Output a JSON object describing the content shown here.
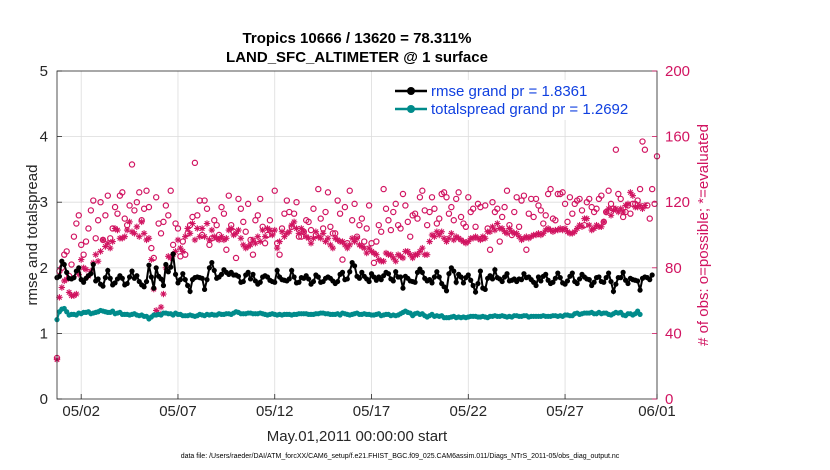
{
  "chart_data": {
    "type": "line",
    "title_line1": "Tropics 10666 / 13620 = 78.311%",
    "title_line2": "LAND_SFC_ALTIMETER @ 1 surface",
    "xlabel": "May.01,2011 00:00:00 start",
    "ylabel_left": "rmse and totalspread",
    "ylabel_right": "# of obs: o=possible; *=evaluated",
    "footer": "data file: /Users/raeder/DAI/ATM_forcXX/CAM6_setup/f.e21.FHIST_BGC.f09_025.CAM6assim.011/Diags_NTrS_2011-05/obs_diag_output.nc",
    "xlim": [
      0.25,
      31.25
    ],
    "ylim_left": [
      0,
      5
    ],
    "ylim_right": [
      0,
      200
    ],
    "x_ticks": [
      1.5,
      6.5,
      11.5,
      16.5,
      21.5,
      26.5,
      31.5
    ],
    "x_tick_labels": [
      "05/02",
      "05/07",
      "05/12",
      "05/17",
      "05/22",
      "05/27",
      "06/01"
    ],
    "y_left_ticks": [
      0,
      1,
      2,
      3,
      4,
      5
    ],
    "y_left_tick_labels": [
      "0",
      "1",
      "2",
      "3",
      "4",
      "5"
    ],
    "y_right_ticks": [
      0,
      40,
      80,
      120,
      160,
      200
    ],
    "y_right_tick_labels": [
      "0",
      "40",
      "80",
      "120",
      "160",
      "200"
    ],
    "grid": true,
    "legend_position": "top-right",
    "colors": {
      "rmse": "#000000",
      "spread": "#008b8b",
      "obs": "#d11461",
      "grid": "#dcdcdc",
      "legend_text": "#1040e0"
    },
    "series": [
      {
        "name": "rmse grand pr = 1.8361",
        "start_x": 0.25,
        "step": 0.125,
        "values": [
          1.85,
          1.87,
          2.1,
          2.05,
          1.93,
          1.84,
          1.83,
          1.85,
          1.95,
          2.0,
          1.82,
          1.78,
          1.84,
          1.88,
          1.91,
          2.05,
          1.8,
          1.83,
          1.75,
          1.72,
          1.85,
          1.96,
          1.84,
          1.74,
          1.77,
          1.83,
          1.88,
          1.84,
          1.74,
          1.76,
          1.86,
          1.95,
          1.84,
          1.88,
          1.79,
          1.74,
          1.71,
          1.79,
          2.04,
          1.86,
          1.69,
          2.0,
          1.87,
          1.83,
          1.73,
          2.05,
          1.94,
          2.01,
          2.21,
          1.9,
          1.77,
          1.82,
          1.91,
          1.82,
          1.73,
          1.64,
          1.82,
          1.85,
          1.86,
          1.85,
          1.84,
          1.67,
          1.82,
          2.0,
          2.08,
          1.96,
          1.84,
          1.86,
          1.9,
          1.97,
          1.93,
          1.9,
          1.93,
          1.89,
          1.89,
          1.87,
          1.78,
          1.79,
          1.89,
          1.93,
          1.83,
          1.9,
          1.8,
          1.75,
          1.78,
          1.86,
          1.88,
          1.86,
          1.81,
          1.79,
          1.78,
          1.96,
          1.86,
          1.82,
          1.81,
          1.8,
          1.83,
          1.96,
          1.86,
          1.77,
          1.78,
          1.85,
          1.84,
          1.88,
          1.83,
          1.75,
          1.79,
          1.89,
          1.86,
          1.78,
          1.79,
          1.84,
          1.86,
          1.84,
          1.8,
          1.76,
          1.79,
          1.9,
          1.93,
          1.82,
          1.83,
          1.94,
          2.08,
          2.03,
          1.87,
          1.84,
          1.93,
          1.87,
          1.83,
          1.79,
          1.91,
          1.86,
          1.81,
          1.86,
          1.82,
          1.88,
          1.93,
          1.91,
          1.83,
          1.8,
          1.94,
          1.86,
          1.86,
          1.69,
          1.87,
          1.84,
          1.8,
          1.79,
          1.78,
          1.93,
          1.98,
          1.93,
          1.84,
          1.8,
          1.82,
          1.77,
          1.86,
          1.94,
          1.86,
          1.76,
          1.71,
          1.65,
          1.91,
          2.0,
          1.95,
          1.78,
          1.9,
          1.86,
          1.77,
          1.85,
          1.89,
          1.81,
          1.73,
          1.63,
          1.76,
          1.95,
          1.69,
          1.67,
          1.84,
          1.88,
          1.83,
          1.97,
          1.85,
          1.83,
          1.79,
          1.86,
          1.91,
          1.8,
          1.81,
          1.83,
          1.79,
          1.83,
          1.82,
          1.91,
          1.85,
          1.86,
          1.82,
          1.78,
          1.73,
          1.86,
          1.8,
          1.87,
          1.9,
          1.81,
          1.76,
          1.78,
          1.84,
          1.92,
          1.85,
          1.77,
          1.75,
          1.8,
          1.87,
          1.92,
          1.79,
          1.76,
          1.83,
          1.9,
          1.86,
          1.83,
          1.82,
          1.73,
          1.78,
          1.85,
          1.86,
          1.79,
          1.78,
          1.85,
          1.92,
          1.79,
          1.64,
          1.75,
          1.85,
          1.85,
          1.93,
          1.81,
          1.76,
          1.84,
          1.82,
          1.81,
          1.8,
          1.66,
          1.84,
          1.86,
          1.85,
          1.82,
          1.89
        ]
      },
      {
        "name": "totalspread grand pr = 1.2692",
        "start_x": 0.25,
        "step": 0.125,
        "values": [
          1.21,
          1.33,
          1.37,
          1.38,
          1.33,
          1.28,
          1.29,
          1.29,
          1.28,
          1.31,
          1.3,
          1.32,
          1.32,
          1.33,
          1.3,
          1.31,
          1.32,
          1.33,
          1.35,
          1.34,
          1.33,
          1.32,
          1.32,
          1.34,
          1.3,
          1.31,
          1.32,
          1.29,
          1.29,
          1.29,
          1.28,
          1.29,
          1.3,
          1.28,
          1.27,
          1.28,
          1.26,
          1.26,
          1.22,
          1.25,
          1.28,
          1.28,
          1.29,
          1.28,
          1.31,
          1.31,
          1.3,
          1.3,
          1.28,
          1.31,
          1.29,
          1.29,
          1.27,
          1.27,
          1.27,
          1.28,
          1.27,
          1.26,
          1.27,
          1.29,
          1.28,
          1.27,
          1.29,
          1.28,
          1.29,
          1.28,
          1.28,
          1.3,
          1.29,
          1.29,
          1.3,
          1.3,
          1.29,
          1.31,
          1.33,
          1.32,
          1.3,
          1.3,
          1.3,
          1.31,
          1.31,
          1.3,
          1.3,
          1.3,
          1.31,
          1.3,
          1.29,
          1.28,
          1.29,
          1.3,
          1.29,
          1.28,
          1.29,
          1.28,
          1.29,
          1.29,
          1.29,
          1.28,
          1.29,
          1.29,
          1.3,
          1.3,
          1.3,
          1.3,
          1.29,
          1.29,
          1.29,
          1.3,
          1.3,
          1.31,
          1.31,
          1.3,
          1.3,
          1.29,
          1.29,
          1.29,
          1.3,
          1.28,
          1.31,
          1.3,
          1.29,
          1.28,
          1.29,
          1.3,
          1.31,
          1.29,
          1.29,
          1.3,
          1.29,
          1.29,
          1.28,
          1.28,
          1.29,
          1.3,
          1.27,
          1.28,
          1.29,
          1.29,
          1.27,
          1.28,
          1.27,
          1.28,
          1.3,
          1.32,
          1.34,
          1.32,
          1.31,
          1.27,
          1.3,
          1.31,
          1.29,
          1.3,
          1.27,
          1.25,
          1.27,
          1.29,
          1.26,
          1.27,
          1.26,
          1.27,
          1.24,
          1.24,
          1.24,
          1.25,
          1.26,
          1.24,
          1.25,
          1.24,
          1.25,
          1.24,
          1.25,
          1.26,
          1.26,
          1.26,
          1.25,
          1.25,
          1.26,
          1.25,
          1.24,
          1.26,
          1.26,
          1.27,
          1.26,
          1.26,
          1.27,
          1.26,
          1.25,
          1.26,
          1.25,
          1.27,
          1.27,
          1.26,
          1.26,
          1.27,
          1.27,
          1.25,
          1.26,
          1.26,
          1.26,
          1.26,
          1.26,
          1.27,
          1.26,
          1.26,
          1.26,
          1.27,
          1.27,
          1.26,
          1.27,
          1.26,
          1.28,
          1.28,
          1.27,
          1.27,
          1.3,
          1.31,
          1.29,
          1.3,
          1.31,
          1.31,
          1.31,
          1.32,
          1.3,
          1.3,
          1.32,
          1.3,
          1.31,
          1.31,
          1.29,
          1.28,
          1.3,
          1.32,
          1.31,
          1.32,
          1.28,
          1.27,
          1.3,
          1.3,
          1.28,
          1.3,
          1.34,
          1.29
        ]
      },
      {
        "name": "obs possible",
        "marker": "o",
        "axis": "right",
        "start_x": 0.25,
        "step": 0.125,
        "values": [
          25,
          78,
          80,
          88,
          90,
          75,
          82,
          99,
          107,
          112,
          94,
          88,
          96,
          104,
          115,
          121,
          98,
          109,
          120,
          97,
          112,
          124,
          98,
          104,
          117,
          113,
          124,
          126,
          110,
          106,
          118,
          143,
          115,
          120,
          126,
          109,
          116,
          127,
          117,
          92,
          86,
          123,
          107,
          101,
          108,
          118,
          112,
          127,
          94,
          107,
          104,
          87,
          96,
          88,
          101,
          106,
          111,
          144,
          112,
          121,
          100,
          121,
          116,
          94,
          98,
          109,
          106,
          100,
          117,
          113,
          91,
          124,
          106,
          102,
          86,
          122,
          116,
          108,
          102,
          119,
          97,
          88,
          109,
          112,
          122,
          105,
          95,
          100,
          109,
          101,
          127,
          95,
          88,
          104,
          113,
          121,
          114,
          105,
          113,
          120,
          99,
          99,
          102,
          109,
          108,
          103,
          116,
          100,
          128,
          110,
          104,
          114,
          126,
          105,
          101,
          101,
          121,
          113,
          85,
          117,
          95,
          127,
          109,
          119,
          99,
          106,
          110,
          96,
          104,
          118,
          95,
          83,
          96,
          106,
          102,
          128,
          116,
          109,
          103,
          114,
          119,
          106,
          104,
          125,
          118,
          108,
          99,
          112,
          113,
          110,
          123,
          127,
          115,
          106,
          114,
          123,
          116,
          107,
          110,
          125,
          126,
          123,
          113,
          117,
          109,
          122,
          126,
          111,
          107,
          105,
          123,
          114,
          116,
          105,
          119,
          117,
          98,
          118,
          104,
          91,
          120,
          114,
          116,
          96,
          111,
          117,
          127,
          106,
          100,
          114,
          123,
          105,
          121,
          124,
          91,
          113,
          122,
          111,
          122,
          118,
          115,
          107,
          112,
          125,
          128,
          110,
          109,
          125,
          125,
          126,
          119,
          108,
          123,
          113,
          119,
          121,
          122,
          115,
          106,
          120,
          122,
          117,
          114,
          116,
          122,
          124,
          108,
          114,
          127,
          119,
          116,
          152,
          125,
          122,
          111,
          114,
          118,
          113,
          119,
          119,
          121,
          128,
          157,
          152,
          118,
          110,
          128,
          119,
          148
        ]
      },
      {
        "name": "obs evaluated",
        "marker": "*",
        "axis": "right",
        "start_x": 0.25,
        "step": 0.125,
        "values": [
          24,
          62,
          68,
          72,
          73,
          65,
          63,
          63,
          64,
          76,
          85,
          80,
          79,
          75,
          78,
          83,
          88,
          84,
          90,
          97,
          93,
          95,
          92,
          96,
          104,
          103,
          98,
          98,
          99,
          103,
          108,
          102,
          101,
          105,
          99,
          108,
          101,
          97,
          98,
          85,
          67,
          54,
          52,
          56,
          64,
          80,
          87,
          86,
          88,
          90,
          97,
          92,
          90,
          99,
          104,
          101,
          107,
          97,
          104,
          99,
          104,
          99,
          107,
          97,
          103,
          99,
          98,
          97,
          99,
          97,
          98,
          103,
          104,
          100,
          101,
          103,
          98,
          94,
          92,
          93,
          94,
          97,
          95,
          99,
          96,
          103,
          99,
          104,
          103,
          100,
          103,
          92,
          96,
          102,
          99,
          101,
          102,
          106,
          108,
          104,
          101,
          104,
          102,
          99,
          98,
          95,
          98,
          102,
          99,
          98,
          101,
          96,
          98,
          94,
          92,
          98,
          97,
          96,
          96,
          94,
          92,
          94,
          98,
          96,
          98,
          94,
          93,
          92,
          89,
          92,
          90,
          89,
          88,
          85,
          84,
          84,
          89,
          88,
          88,
          86,
          84,
          88,
          87,
          86,
          90,
          90,
          88,
          86,
          88,
          88,
          90,
          92,
          88,
          88,
          96,
          100,
          99,
          102,
          100,
          102,
          98,
          96,
          98,
          101,
          97,
          99,
          98,
          97,
          96,
          95,
          96,
          98,
          98,
          99,
          98,
          97,
          99,
          98,
          102,
          102,
          105,
          103,
          107,
          104,
          104,
          102,
          101,
          104,
          102,
          101,
          101,
          99,
          97,
          98,
          99,
          98,
          99,
          100,
          100,
          101,
          100,
          101,
          103,
          104,
          103,
          102,
          103,
          103,
          104,
          103,
          104,
          102,
          101,
          101,
          102,
          104,
          106,
          105,
          110,
          110,
          106,
          103,
          104,
          106,
          105,
          105,
          108,
          114,
          116,
          112,
          115,
          116,
          114,
          116,
          114,
          118,
          119,
          126,
          124,
          117,
          117,
          118,
          116,
          118
        ]
      }
    ]
  }
}
